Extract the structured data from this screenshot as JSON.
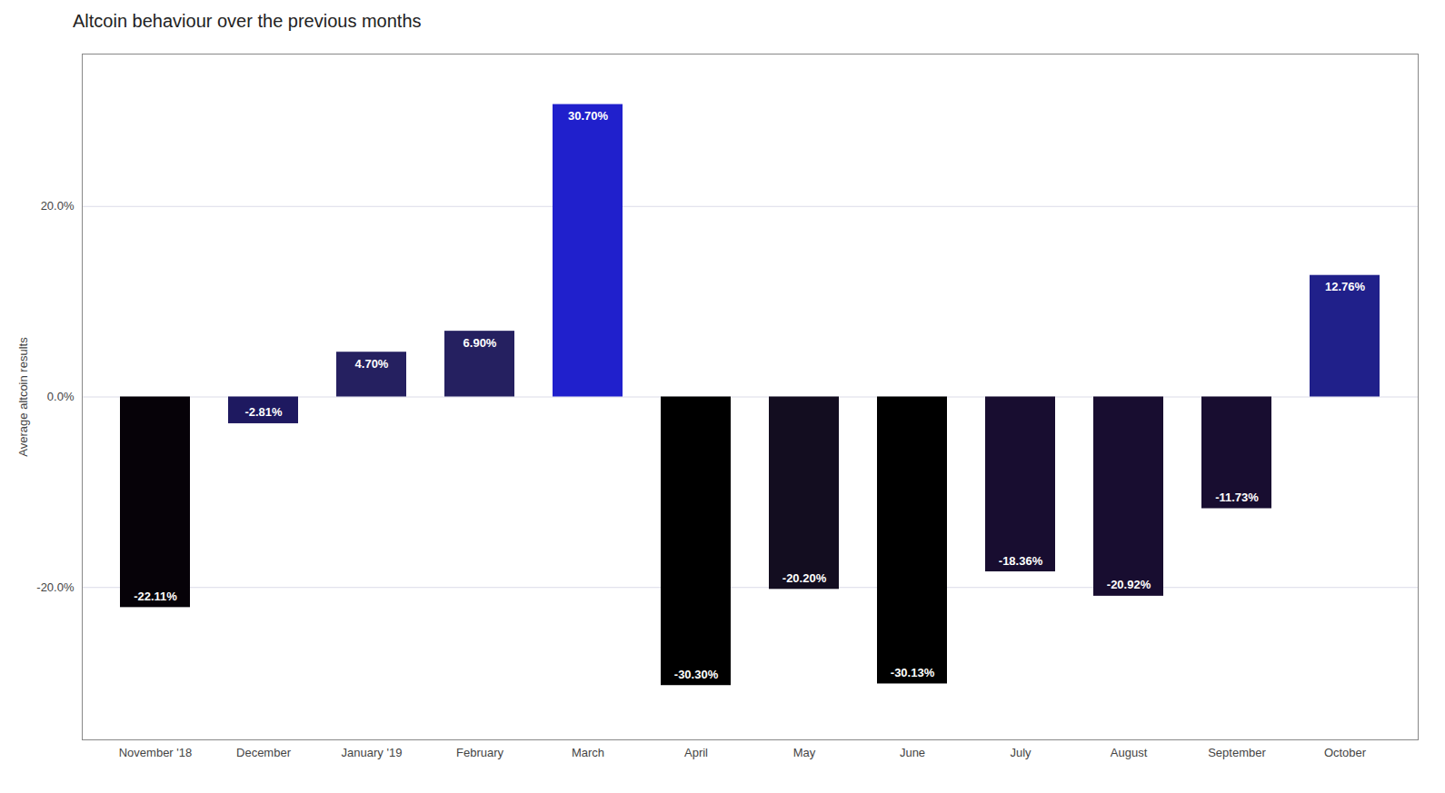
{
  "chart_data": {
    "type": "bar",
    "title": "Altcoin behaviour over the previous months",
    "categories": [
      "November '18",
      "December",
      "January '19",
      "February",
      "March",
      "April",
      "May",
      "June",
      "July",
      "August",
      "September",
      "October"
    ],
    "values": [
      -22.11,
      -2.81,
      4.7,
      6.9,
      30.7,
      -30.3,
      -20.2,
      -30.13,
      -18.36,
      -20.92,
      -11.73,
      12.76
    ],
    "value_labels": [
      "-22.11%",
      "-2.81%",
      "4.70%",
      "6.90%",
      "30.70%",
      "-30.30%",
      "-20.20%",
      "-30.13%",
      "-18.36%",
      "-20.92%",
      "-11.73%",
      "12.76%"
    ],
    "colors": [
      "#060208",
      "#1e1960",
      "#252060",
      "#252060",
      "#2020cc",
      "#000000",
      "#130d20",
      "#000000",
      "#180d30",
      "#180d30",
      "#180d30",
      "#20208a"
    ],
    "ylabel": "Average altcoin results",
    "ylim": [
      -36,
      36
    ],
    "yticks": [
      {
        "value": -20.0,
        "label": "-20.0%"
      },
      {
        "value": 0.0,
        "label": "0.0%"
      },
      {
        "value": 20.0,
        "label": "20.0%"
      }
    ],
    "grid": true,
    "data_labels": true
  }
}
